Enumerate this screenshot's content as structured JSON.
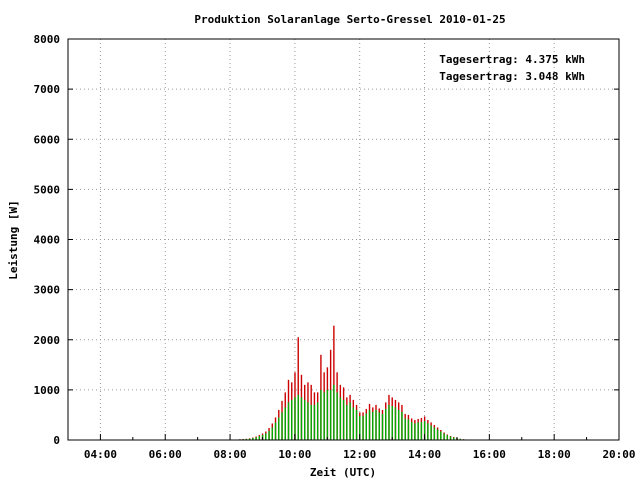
{
  "chart_data": {
    "type": "bar",
    "title": "Produktion Solaranlage Serto-Gressel 2010-01-25",
    "xlabel": "Zeit (UTC)",
    "ylabel": "Leistung [W]",
    "xlim": [
      3,
      20
    ],
    "ylim": [
      0,
      8000
    ],
    "x_ticks": [
      "04:00",
      "06:00",
      "08:00",
      "10:00",
      "12:00",
      "14:00",
      "16:00",
      "18:00",
      "20:00"
    ],
    "y_ticks": [
      "0",
      "1000",
      "2000",
      "3000",
      "4000",
      "5000",
      "6000",
      "7000",
      "8000"
    ],
    "grid": true,
    "legend_position": "top-right",
    "series": [
      {
        "name": "Tagesertrag: 4.375 kWh",
        "color": "#cc0000",
        "x": [
          8.2,
          8.3,
          8.4,
          8.5,
          8.6,
          8.7,
          8.8,
          8.9,
          9.0,
          9.1,
          9.2,
          9.3,
          9.4,
          9.5,
          9.6,
          9.7,
          9.8,
          9.9,
          10.0,
          10.1,
          10.2,
          10.3,
          10.4,
          10.5,
          10.6,
          10.7,
          10.8,
          10.9,
          11.0,
          11.1,
          11.2,
          11.3,
          11.4,
          11.5,
          11.6,
          11.7,
          11.8,
          11.9,
          12.0,
          12.1,
          12.2,
          12.3,
          12.4,
          12.5,
          12.6,
          12.7,
          12.8,
          12.9,
          13.0,
          13.1,
          13.2,
          13.3,
          13.4,
          13.5,
          13.6,
          13.7,
          13.8,
          13.9,
          14.0,
          14.1,
          14.2,
          14.3,
          14.4,
          14.5,
          14.6,
          14.7,
          14.8,
          14.9,
          15.0,
          15.1,
          15.2,
          15.3,
          15.4,
          15.5,
          15.6,
          15.7
        ],
        "values": [
          10,
          15,
          20,
          25,
          35,
          50,
          70,
          100,
          130,
          170,
          240,
          330,
          450,
          600,
          780,
          950,
          1200,
          1150,
          1350,
          2050,
          1300,
          1100,
          1150,
          1100,
          950,
          950,
          1700,
          1350,
          1450,
          1800,
          2280,
          1350,
          1100,
          1050,
          850,
          900,
          800,
          700,
          550,
          550,
          620,
          720,
          650,
          700,
          630,
          600,
          750,
          900,
          850,
          800,
          750,
          700,
          520,
          500,
          430,
          400,
          420,
          440,
          470,
          400,
          350,
          300,
          250,
          200,
          150,
          110,
          80,
          60,
          40,
          25,
          15,
          10,
          8,
          5,
          3,
          2
        ]
      },
      {
        "name": "Tagesertrag: 3.048 kWh",
        "color": "#00aa00",
        "x": [
          8.2,
          8.3,
          8.4,
          8.5,
          8.6,
          8.7,
          8.8,
          8.9,
          9.0,
          9.1,
          9.2,
          9.3,
          9.4,
          9.5,
          9.6,
          9.7,
          9.8,
          9.9,
          10.0,
          10.1,
          10.2,
          10.3,
          10.4,
          10.5,
          10.6,
          10.7,
          10.8,
          10.9,
          11.0,
          11.1,
          11.2,
          11.3,
          11.4,
          11.5,
          11.6,
          11.7,
          11.8,
          11.9,
          12.0,
          12.1,
          12.2,
          12.3,
          12.4,
          12.5,
          12.6,
          12.7,
          12.8,
          12.9,
          13.0,
          13.1,
          13.2,
          13.3,
          13.4,
          13.5,
          13.6,
          13.7,
          13.8,
          13.9,
          14.0,
          14.1,
          14.2,
          14.3,
          14.4,
          14.5,
          14.6,
          14.7,
          14.8,
          14.9,
          15.0,
          15.1,
          15.2,
          15.3,
          15.4,
          15.5,
          15.6,
          15.7
        ],
        "values": [
          8,
          12,
          15,
          20,
          28,
          40,
          55,
          80,
          100,
          130,
          180,
          250,
          350,
          450,
          550,
          650,
          750,
          800,
          850,
          900,
          850,
          800,
          750,
          700,
          700,
          750,
          1000,
          950,
          1000,
          1000,
          1100,
          950,
          850,
          800,
          700,
          750,
          650,
          600,
          480,
          480,
          530,
          600,
          560,
          600,
          550,
          520,
          620,
          700,
          680,
          650,
          600,
          560,
          430,
          410,
          360,
          330,
          350,
          360,
          380,
          330,
          290,
          250,
          210,
          170,
          130,
          95,
          70,
          50,
          35,
          22,
          13,
          9,
          7,
          4,
          2,
          1
        ]
      }
    ]
  }
}
